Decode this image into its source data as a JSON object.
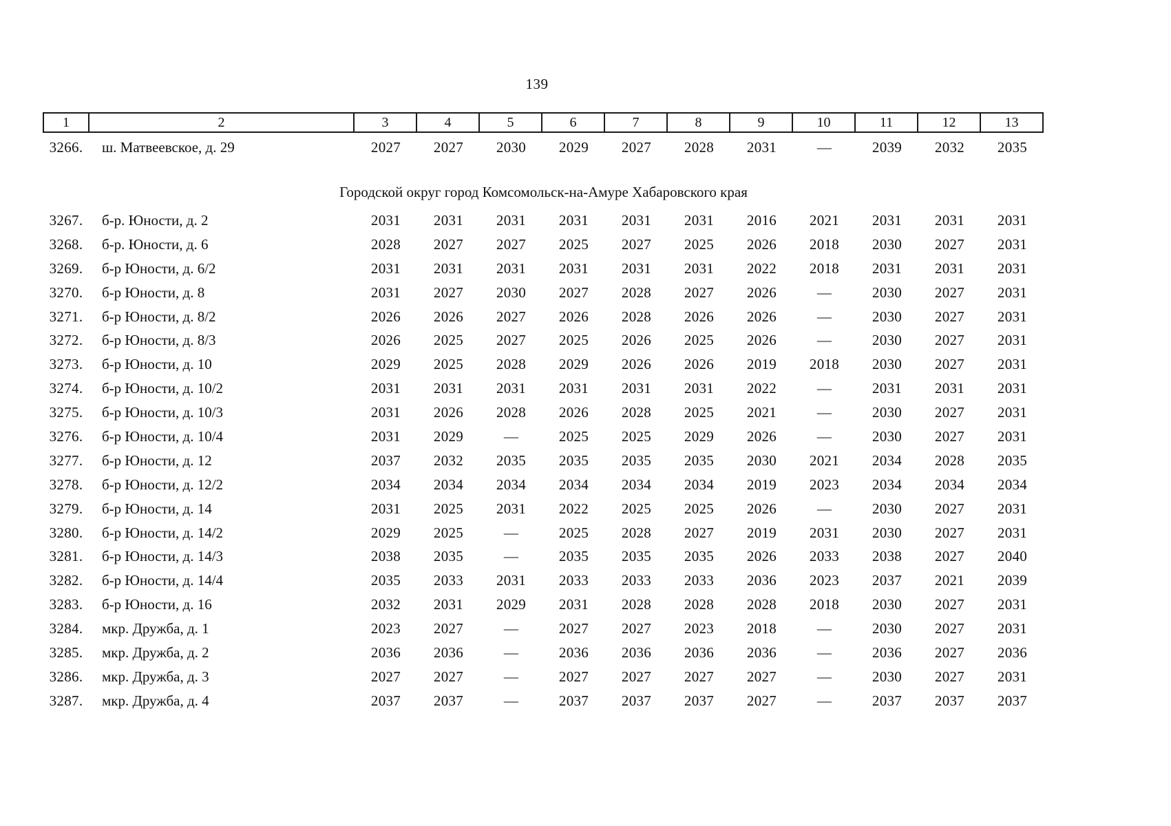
{
  "page": {
    "number": "139"
  },
  "table": {
    "column_headers": [
      "1",
      "2",
      "3",
      "4",
      "5",
      "6",
      "7",
      "8",
      "9",
      "10",
      "11",
      "12",
      "13"
    ],
    "pre_section_rows": [
      {
        "num": "3266.",
        "address": "ш. Матвеевское, д. 29",
        "values": [
          "2027",
          "2027",
          "2030",
          "2029",
          "2027",
          "2028",
          "2031",
          "—",
          "2039",
          "2032",
          "2035"
        ]
      }
    ],
    "section_title": "Городской округ город Комсомольск-на-Амуре Хабаровского края",
    "rows": [
      {
        "num": "3267.",
        "address": "б-р. Юности, д. 2",
        "values": [
          "2031",
          "2031",
          "2031",
          "2031",
          "2031",
          "2031",
          "2016",
          "2021",
          "2031",
          "2031",
          "2031"
        ]
      },
      {
        "num": "3268.",
        "address": "б-р. Юности, д. 6",
        "values": [
          "2028",
          "2027",
          "2027",
          "2025",
          "2027",
          "2025",
          "2026",
          "2018",
          "2030",
          "2027",
          "2031"
        ]
      },
      {
        "num": "3269.",
        "address": "б-р Юности, д. 6/2",
        "values": [
          "2031",
          "2031",
          "2031",
          "2031",
          "2031",
          "2031",
          "2022",
          "2018",
          "2031",
          "2031",
          "2031"
        ]
      },
      {
        "num": "3270.",
        "address": "б-р Юности, д. 8",
        "values": [
          "2031",
          "2027",
          "2030",
          "2027",
          "2028",
          "2027",
          "2026",
          "—",
          "2030",
          "2027",
          "2031"
        ]
      },
      {
        "num": "3271.",
        "address": "б-р Юности, д. 8/2",
        "values": [
          "2026",
          "2026",
          "2027",
          "2026",
          "2028",
          "2026",
          "2026",
          "—",
          "2030",
          "2027",
          "2031"
        ]
      },
      {
        "num": "3272.",
        "address": "б-р Юности, д. 8/3",
        "values": [
          "2026",
          "2025",
          "2027",
          "2025",
          "2026",
          "2025",
          "2026",
          "—",
          "2030",
          "2027",
          "2031"
        ]
      },
      {
        "num": "3273.",
        "address": "б-р Юности, д. 10",
        "values": [
          "2029",
          "2025",
          "2028",
          "2029",
          "2026",
          "2026",
          "2019",
          "2018",
          "2030",
          "2027",
          "2031"
        ]
      },
      {
        "num": "3274.",
        "address": "б-р Юности, д. 10/2",
        "values": [
          "2031",
          "2031",
          "2031",
          "2031",
          "2031",
          "2031",
          "2022",
          "—",
          "2031",
          "2031",
          "2031"
        ]
      },
      {
        "num": "3275.",
        "address": "б-р Юности, д. 10/3",
        "values": [
          "2031",
          "2026",
          "2028",
          "2026",
          "2028",
          "2025",
          "2021",
          "—",
          "2030",
          "2027",
          "2031"
        ]
      },
      {
        "num": "3276.",
        "address": "б-р Юности, д. 10/4",
        "values": [
          "2031",
          "2029",
          "—",
          "2025",
          "2025",
          "2029",
          "2026",
          "—",
          "2030",
          "2027",
          "2031"
        ]
      },
      {
        "num": "3277.",
        "address": "б-р Юности, д. 12",
        "values": [
          "2037",
          "2032",
          "2035",
          "2035",
          "2035",
          "2035",
          "2030",
          "2021",
          "2034",
          "2028",
          "2035"
        ]
      },
      {
        "num": "3278.",
        "address": "б-р Юности, д. 12/2",
        "values": [
          "2034",
          "2034",
          "2034",
          "2034",
          "2034",
          "2034",
          "2019",
          "2023",
          "2034",
          "2034",
          "2034"
        ]
      },
      {
        "num": "3279.",
        "address": "б-р Юности, д. 14",
        "values": [
          "2031",
          "2025",
          "2031",
          "2022",
          "2025",
          "2025",
          "2026",
          "—",
          "2030",
          "2027",
          "2031"
        ]
      },
      {
        "num": "3280.",
        "address": "б-р Юности, д. 14/2",
        "values": [
          "2029",
          "2025",
          "—",
          "2025",
          "2028",
          "2027",
          "2019",
          "2031",
          "2030",
          "2027",
          "2031"
        ]
      },
      {
        "num": "3281.",
        "address": "б-р Юности, д. 14/3",
        "values": [
          "2038",
          "2035",
          "—",
          "2035",
          "2035",
          "2035",
          "2026",
          "2033",
          "2038",
          "2027",
          "2040"
        ]
      },
      {
        "num": "3282.",
        "address": "б-р Юности, д. 14/4",
        "values": [
          "2035",
          "2033",
          "2031",
          "2033",
          "2033",
          "2033",
          "2036",
          "2023",
          "2037",
          "2021",
          "2039"
        ]
      },
      {
        "num": "3283.",
        "address": "б-р Юности, д. 16",
        "values": [
          "2032",
          "2031",
          "2029",
          "2031",
          "2028",
          "2028",
          "2028",
          "2018",
          "2030",
          "2027",
          "2031"
        ]
      },
      {
        "num": "3284.",
        "address": "мкр. Дружба, д. 1",
        "values": [
          "2023",
          "2027",
          "—",
          "2027",
          "2027",
          "2023",
          "2018",
          "—",
          "2030",
          "2027",
          "2031"
        ]
      },
      {
        "num": "3285.",
        "address": "мкр. Дружба, д. 2",
        "values": [
          "2036",
          "2036",
          "—",
          "2036",
          "2036",
          "2036",
          "2036",
          "—",
          "2036",
          "2027",
          "2036"
        ]
      },
      {
        "num": "3286.",
        "address": "мкр. Дружба, д. 3",
        "values": [
          "2027",
          "2027",
          "—",
          "2027",
          "2027",
          "2027",
          "2027",
          "—",
          "2030",
          "2027",
          "2031"
        ]
      },
      {
        "num": "3287.",
        "address": "мкр. Дружба, д. 4",
        "values": [
          "2037",
          "2037",
          "—",
          "2037",
          "2037",
          "2037",
          "2027",
          "—",
          "2037",
          "2037",
          "2037"
        ]
      }
    ]
  }
}
